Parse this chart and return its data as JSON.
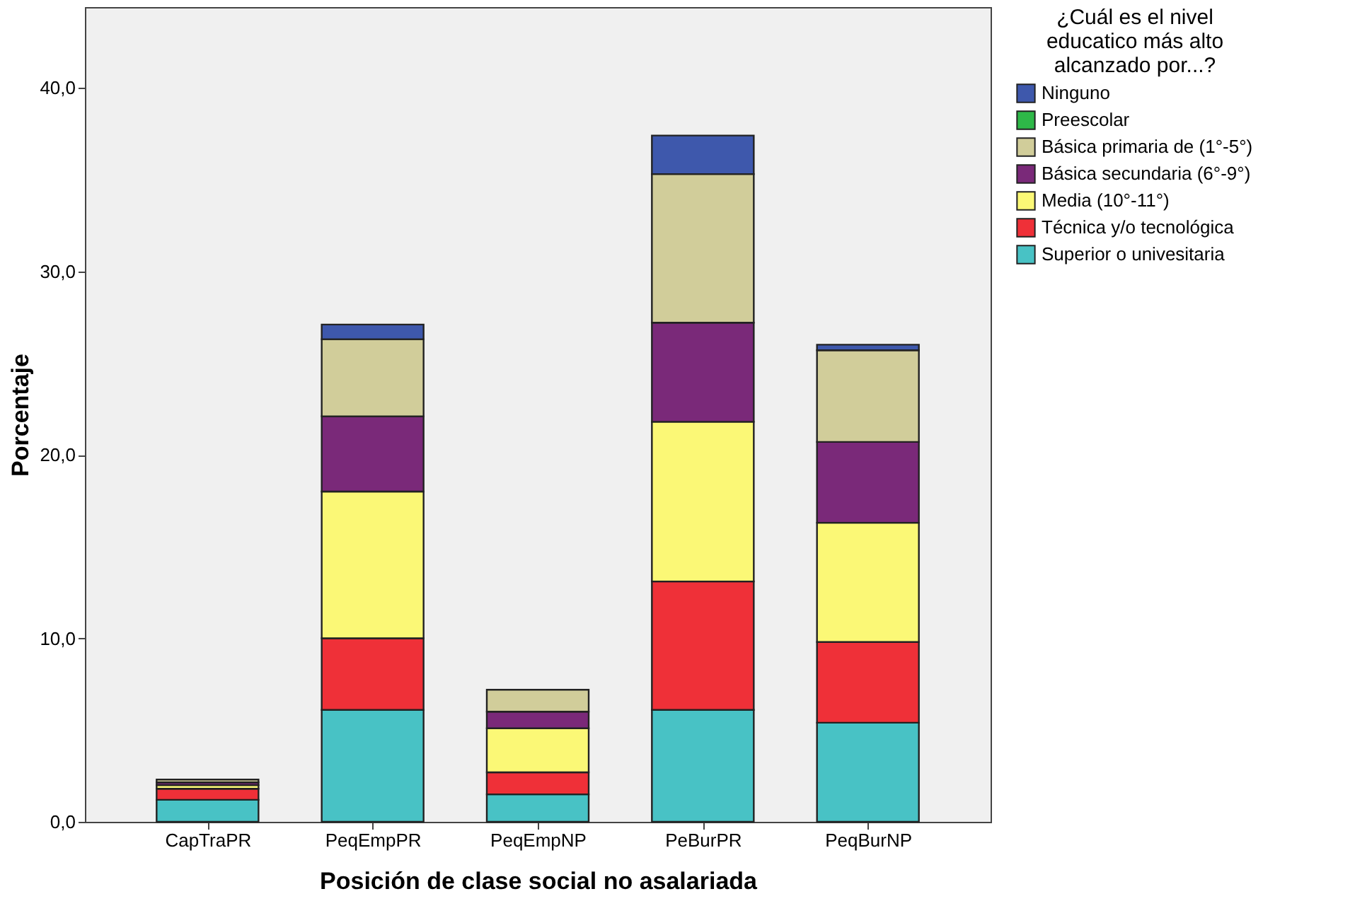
{
  "chart_data": {
    "type": "bar",
    "stacked": true,
    "xlabel": "Posición de clase social no asalariada",
    "ylabel": "Porcentaje",
    "legend_title": "¿Cuál es el nivel educatico más alto alcanzado por...?",
    "legend": "right",
    "grid": false,
    "categories": [
      "CapTraPR",
      "PeqEmpPR",
      "PeqEmpNP",
      "PeBurPR",
      "PeqBurNP"
    ],
    "ylim": [
      0,
      44.4
    ],
    "yticks": [
      {
        "value": 0,
        "label": "0,0"
      },
      {
        "value": 10,
        "label": "10,0"
      },
      {
        "value": 20,
        "label": "20,0"
      },
      {
        "value": 30,
        "label": "30,0"
      },
      {
        "value": 40,
        "label": "40,0"
      }
    ],
    "series": [
      {
        "name": "Superior o univesitaria",
        "color": "#48c2c5",
        "values": [
          1.2,
          6.1,
          1.5,
          6.1,
          5.4
        ]
      },
      {
        "name": "Técnica y/o tecnológica",
        "color": "#ef3038",
        "values": [
          0.6,
          3.9,
          1.2,
          7.0,
          4.4
        ]
      },
      {
        "name": "Media (10°-11°)",
        "color": "#fbf876",
        "values": [
          0.2,
          8.0,
          2.4,
          8.7,
          6.5
        ]
      },
      {
        "name": "Básica secundaria (6°-9°)",
        "color": "#7a2979",
        "values": [
          0.15,
          4.1,
          0.9,
          5.4,
          4.4
        ]
      },
      {
        "name": "Básica primaria de (1°-5°)",
        "color": "#d1cd9a",
        "values": [
          0.15,
          4.2,
          1.2,
          8.1,
          5.0
        ]
      },
      {
        "name": "Preescolar",
        "color": "#2eb848",
        "values": [
          null,
          null,
          null,
          null,
          null
        ]
      },
      {
        "name": "Ninguno",
        "color": "#3e58ac",
        "values": [
          null,
          0.8,
          null,
          2.1,
          0.3
        ]
      }
    ]
  }
}
